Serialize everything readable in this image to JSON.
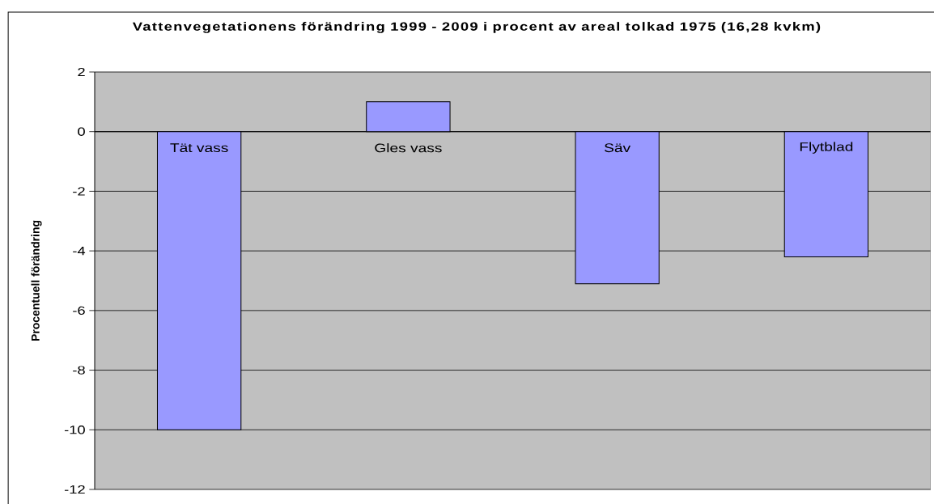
{
  "chart_data": {
    "type": "bar",
    "title": "Vattenvegetationens förändring 1999 - 2009 i procent av areal tolkad 1975 (16,28 kvkm)",
    "ylabel": "Procentuell förändring",
    "categories": [
      "Tät vass",
      "Gles vass",
      "Säv",
      "Flytblad"
    ],
    "values": [
      -10,
      1.0,
      -5.1,
      -4.2
    ],
    "color": "#9999ff",
    "ylim": [
      -12,
      2
    ],
    "yticks": [
      -12,
      -10,
      -8,
      -6,
      -4,
      -2,
      0,
      2
    ],
    "grid": "y"
  }
}
